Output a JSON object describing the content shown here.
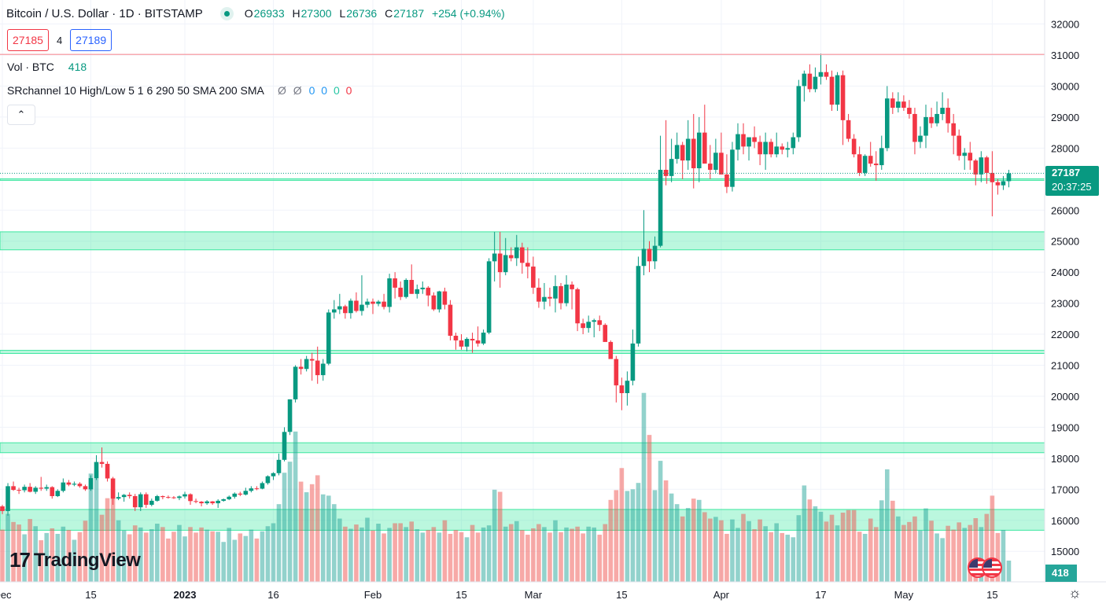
{
  "header": {
    "title": "Bitcoin / U.S. Dollar · 1D · BITSTAMP",
    "ohlc": {
      "o_label": "O",
      "o": "26933",
      "h_label": "H",
      "h": "27300",
      "l_label": "L",
      "l": "26736",
      "c_label": "C",
      "c": "27187",
      "change": "+254 (+0.94%)"
    }
  },
  "quote": {
    "sell": "27185",
    "spread": "4",
    "buy": "27189"
  },
  "volume_indicator": {
    "label": "Vol · BTC",
    "value": "418"
  },
  "sr_indicator": {
    "label": "SRchannel 10 High/Low 5 1 6 290 50 SMA 200 SMA",
    "v1": "Ø",
    "v2": "Ø",
    "v3": "0",
    "v4": "0",
    "v5": "0",
    "v6": "0"
  },
  "price_tag": {
    "price": "27187",
    "countdown": "20:37:25"
  },
  "volume_tag": "418",
  "logo_text": "TradingView",
  "colors": {
    "up": "#26a69a",
    "down": "#ef5350",
    "zone": "#3ce7a0"
  },
  "chart_data": {
    "type": "candlestick",
    "y_ticks": [
      15000,
      16000,
      17000,
      18000,
      19000,
      20000,
      21000,
      22000,
      23000,
      24000,
      25000,
      26000,
      27000,
      28000,
      29000,
      30000,
      31000,
      32000
    ],
    "x_ticks": [
      "Dec",
      "15",
      "2023",
      "16",
      "Feb",
      "15",
      "Mar",
      "15",
      "Apr",
      "17",
      "May",
      "15"
    ],
    "ylim": [
      14900,
      32000
    ],
    "sr_zones": [
      [
        15680,
        16350
      ],
      [
        18180,
        18500
      ],
      [
        21380,
        21480
      ],
      [
        24720,
        25300
      ],
      [
        26980,
        27010
      ]
    ],
    "resistance_line": 31020,
    "last_price": 27187,
    "ohlc": [
      [
        16450,
        16500,
        16200,
        16300,
        12.3
      ],
      [
        16300,
        17200,
        16150,
        17100,
        16.0
      ],
      [
        17100,
        17250,
        16950,
        16980,
        14.1
      ],
      [
        16980,
        17050,
        16850,
        16970,
        13.5
      ],
      [
        16970,
        17150,
        16900,
        17080,
        11.2
      ],
      [
        17080,
        17200,
        16900,
        16920,
        14.8
      ],
      [
        16920,
        17100,
        16850,
        17050,
        13.1
      ],
      [
        17050,
        17400,
        16950,
        17020,
        9.8
      ],
      [
        17020,
        17150,
        16950,
        17070,
        11.5
      ],
      [
        17070,
        17100,
        16700,
        16780,
        12.6
      ],
      [
        16780,
        17000,
        16750,
        16950,
        11.3
      ],
      [
        16950,
        17350,
        16900,
        17220,
        13.0
      ],
      [
        17220,
        17300,
        17100,
        17150,
        12.2
      ],
      [
        17150,
        17250,
        17100,
        17180,
        9.9
      ],
      [
        17180,
        17230,
        17050,
        17100,
        11.7
      ],
      [
        17100,
        17150,
        16950,
        17000,
        14.4
      ],
      [
        17000,
        17450,
        16950,
        17360,
        25.5
      ],
      [
        17360,
        18100,
        17300,
        17880,
        26.2
      ],
      [
        17880,
        18350,
        17700,
        17820,
        15.8
      ],
      [
        17820,
        17900,
        17250,
        17350,
        19.7
      ],
      [
        17350,
        17400,
        16500,
        16700,
        21.9
      ],
      [
        16700,
        16900,
        16650,
        16750,
        14.5
      ],
      [
        16750,
        16850,
        16600,
        16820,
        12.1
      ],
      [
        16820,
        16900,
        16700,
        16780,
        11.2
      ],
      [
        16780,
        16850,
        16300,
        16420,
        13.3
      ],
      [
        16420,
        16900,
        16300,
        16840,
        12.8
      ],
      [
        16840,
        16900,
        16400,
        16500,
        11.6
      ],
      [
        16500,
        16700,
        16450,
        16630,
        12.4
      ],
      [
        16630,
        16820,
        16600,
        16780,
        13.7
      ],
      [
        16780,
        16800,
        16680,
        16750,
        12.9
      ],
      [
        16750,
        16800,
        16700,
        16740,
        10.2
      ],
      [
        16740,
        16780,
        16690,
        16720,
        11.8
      ],
      [
        16720,
        16800,
        16650,
        16770,
        13.4
      ],
      [
        16770,
        16920,
        16700,
        16840,
        10.7
      ],
      [
        16840,
        16870,
        16500,
        16620,
        12.9
      ],
      [
        16620,
        16700,
        16550,
        16600,
        11.6
      ],
      [
        16600,
        16620,
        16450,
        16550,
        12.8
      ],
      [
        16550,
        16650,
        16500,
        16610,
        12.3
      ],
      [
        16610,
        16620,
        16500,
        16550,
        11.9
      ],
      [
        16550,
        16680,
        16400,
        16630,
        11.8
      ],
      [
        16630,
        16700,
        16600,
        16680,
        9.4
      ],
      [
        16680,
        16800,
        16650,
        16760,
        12.7
      ],
      [
        16760,
        16900,
        16700,
        16860,
        9.9
      ],
      [
        16860,
        16920,
        16780,
        16830,
        11.4
      ],
      [
        16830,
        17050,
        16800,
        16950,
        10.8
      ],
      [
        16950,
        17100,
        16900,
        17030,
        12.3
      ],
      [
        17030,
        17100,
        16970,
        17020,
        10.2
      ],
      [
        17020,
        17250,
        17000,
        17200,
        11.9
      ],
      [
        17200,
        17450,
        17150,
        17420,
        13.1
      ],
      [
        17420,
        17550,
        17300,
        17520,
        13.8
      ],
      [
        17520,
        18150,
        17450,
        17950,
        18.3
      ],
      [
        17950,
        19000,
        17900,
        18850,
        25.7
      ],
      [
        18850,
        19900,
        18750,
        19900,
        28.3
      ],
      [
        19900,
        21000,
        19800,
        20950,
        35.4
      ],
      [
        20950,
        21200,
        20700,
        20880,
        23.6
      ],
      [
        20880,
        21300,
        20800,
        21200,
        21.1
      ],
      [
        21200,
        21400,
        20500,
        21150,
        23.0
      ],
      [
        21150,
        21600,
        20400,
        20680,
        25.1
      ],
      [
        20680,
        21200,
        20500,
        21050,
        20.6
      ],
      [
        21050,
        22800,
        21000,
        22700,
        20.3
      ],
      [
        22700,
        23100,
        22500,
        22800,
        18.3
      ],
      [
        22800,
        23300,
        22650,
        22900,
        14.9
      ],
      [
        22900,
        22950,
        22500,
        22680,
        13.0
      ],
      [
        22680,
        23150,
        22500,
        23080,
        12.5
      ],
      [
        23080,
        23350,
        22700,
        22750,
        13.5
      ],
      [
        22750,
        23900,
        22600,
        22950,
        12.8
      ],
      [
        22950,
        23150,
        22850,
        23050,
        15.1
      ],
      [
        23050,
        23150,
        22650,
        22980,
        12.1
      ],
      [
        22980,
        23100,
        22900,
        23050,
        13.7
      ],
      [
        23050,
        23300,
        22800,
        22880,
        11.4
      ],
      [
        22880,
        23950,
        22700,
        23800,
        12.7
      ],
      [
        23800,
        24000,
        23150,
        23500,
        13.8
      ],
      [
        23500,
        23700,
        23100,
        23200,
        13.8
      ],
      [
        23200,
        23800,
        23150,
        23750,
        12.9
      ],
      [
        23750,
        24250,
        23300,
        23300,
        14.2
      ],
      [
        23300,
        23600,
        23150,
        23450,
        12.4
      ],
      [
        23450,
        23700,
        23300,
        23500,
        11.6
      ],
      [
        23500,
        23550,
        22900,
        23250,
        12.2
      ],
      [
        23250,
        23350,
        22750,
        22800,
        12.9
      ],
      [
        22800,
        23400,
        22700,
        23380,
        11.6
      ],
      [
        23380,
        23500,
        22800,
        22950,
        14.5
      ],
      [
        22950,
        23100,
        21800,
        21950,
        11.3
      ],
      [
        21950,
        22050,
        21500,
        21800,
        12.2
      ],
      [
        21800,
        22000,
        21500,
        21600,
        11.7
      ],
      [
        21600,
        21900,
        21450,
        21850,
        10.5
      ],
      [
        21850,
        22050,
        21400,
        21800,
        13.4
      ],
      [
        21800,
        22250,
        21600,
        21700,
        11.6
      ],
      [
        21700,
        22150,
        21650,
        22050,
        12.8
      ],
      [
        22050,
        24450,
        22000,
        24350,
        13.3
      ],
      [
        24350,
        25300,
        23700,
        24600,
        21.7
      ],
      [
        24600,
        25300,
        23500,
        24000,
        21.2
      ],
      [
        24000,
        25100,
        23900,
        24550,
        13.0
      ],
      [
        24550,
        24800,
        24350,
        24450,
        13.6
      ],
      [
        24450,
        25200,
        24200,
        24800,
        14.3
      ],
      [
        24800,
        24950,
        23950,
        24300,
        12.2
      ],
      [
        24300,
        24800,
        23800,
        24180,
        11.1
      ],
      [
        24180,
        24500,
        23300,
        23500,
        12.6
      ],
      [
        23500,
        23800,
        22850,
        23050,
        13.6
      ],
      [
        23050,
        23650,
        22800,
        23200,
        12.9
      ],
      [
        23200,
        23500,
        22900,
        23150,
        11.6
      ],
      [
        23150,
        23900,
        22700,
        23550,
        14.5
      ],
      [
        23550,
        23650,
        22800,
        23000,
        11.7
      ],
      [
        23000,
        23900,
        22900,
        23600,
        12.8
      ],
      [
        23600,
        23700,
        22800,
        23450,
        12.5
      ],
      [
        23450,
        23500,
        22100,
        22350,
        13.0
      ],
      [
        22350,
        22500,
        22000,
        22200,
        11.4
      ],
      [
        22200,
        22600,
        22050,
        22400,
        13.0
      ],
      [
        22400,
        22500,
        21900,
        22450,
        12.8
      ],
      [
        22450,
        22600,
        22100,
        22300,
        11.1
      ],
      [
        22300,
        22350,
        21900,
        21750,
        13.6
      ],
      [
        21750,
        21800,
        21300,
        21200,
        19.3
      ],
      [
        21200,
        21300,
        19800,
        20350,
        21.6
      ],
      [
        20350,
        20600,
        19550,
        20100,
        26.8
      ],
      [
        20100,
        20800,
        19700,
        20500,
        21.4
      ],
      [
        20500,
        22150,
        20350,
        21700,
        21.8
      ],
      [
        21700,
        24500,
        21600,
        24200,
        23.3
      ],
      [
        24200,
        26000,
        23900,
        24750,
        44.5
      ],
      [
        24750,
        25000,
        24000,
        24350,
        34.6
      ],
      [
        24350,
        25150,
        24100,
        24850,
        21.6
      ],
      [
        24850,
        28400,
        24800,
        27300,
        28.5
      ],
      [
        27300,
        28900,
        26800,
        27100,
        23.9
      ],
      [
        27100,
        28300,
        26900,
        27650,
        20.8
      ],
      [
        27650,
        28500,
        27500,
        28100,
        18.3
      ],
      [
        28100,
        28200,
        27000,
        27600,
        15.4
      ],
      [
        27600,
        28900,
        27300,
        28300,
        17.4
      ],
      [
        28300,
        29100,
        26700,
        27350,
        19.6
      ],
      [
        27350,
        29000,
        26900,
        28500,
        19.3
      ],
      [
        28500,
        29400,
        27500,
        27500,
        16.4
      ],
      [
        27500,
        28100,
        27000,
        27300,
        14.9
      ],
      [
        27300,
        28300,
        27200,
        27850,
        15.3
      ],
      [
        27850,
        28500,
        27300,
        27150,
        14.5
      ],
      [
        27150,
        27800,
        26550,
        26750,
        11.3
      ],
      [
        26750,
        28200,
        26600,
        27950,
        14.7
      ],
      [
        27950,
        28800,
        27600,
        28450,
        12.7
      ],
      [
        28450,
        28800,
        27800,
        28050,
        16.0
      ],
      [
        28050,
        28200,
        27600,
        28350,
        14.3
      ],
      [
        28350,
        28700,
        28000,
        28200,
        12.4
      ],
      [
        28200,
        28400,
        27450,
        27800,
        14.7
      ],
      [
        27800,
        28500,
        27300,
        28200,
        13.1
      ],
      [
        28200,
        28300,
        27700,
        27800,
        11.7
      ],
      [
        27800,
        28500,
        27700,
        28050,
        13.8
      ],
      [
        28050,
        28150,
        27800,
        27950,
        11.5
      ],
      [
        27950,
        28200,
        27700,
        28000,
        11.1
      ],
      [
        28000,
        28500,
        27800,
        28350,
        10.5
      ],
      [
        28350,
        30200,
        28200,
        30000,
        15.7
      ],
      [
        30000,
        30500,
        29500,
        30400,
        22.7
      ],
      [
        30400,
        30700,
        29800,
        29900,
        19.4
      ],
      [
        29900,
        30600,
        29800,
        30300,
        17.8
      ],
      [
        30300,
        31050,
        30050,
        30450,
        16.5
      ],
      [
        30450,
        30700,
        30200,
        30300,
        14.2
      ],
      [
        30300,
        30500,
        29200,
        29400,
        15.8
      ],
      [
        29400,
        30450,
        29200,
        30350,
        13.3
      ],
      [
        30350,
        30500,
        28100,
        28900,
        16.3
      ],
      [
        28900,
        29100,
        28200,
        28300,
        16.9
      ],
      [
        28300,
        28450,
        27700,
        27800,
        16.9
      ],
      [
        27800,
        28050,
        27100,
        27200,
        11.8
      ],
      [
        27200,
        27800,
        27100,
        27750,
        11.3
      ],
      [
        27750,
        28200,
        27400,
        27500,
        14.9
      ],
      [
        27500,
        27900,
        26950,
        27450,
        12.9
      ],
      [
        27450,
        28400,
        27300,
        28000,
        19.2
      ],
      [
        28000,
        30000,
        27900,
        29600,
        26.5
      ],
      [
        29600,
        29800,
        29100,
        29300,
        19.1
      ],
      [
        29300,
        29800,
        29150,
        29500,
        15.4
      ],
      [
        29500,
        29700,
        29200,
        29300,
        13.4
      ],
      [
        29300,
        29550,
        28950,
        29100,
        14.1
      ],
      [
        29100,
        29300,
        27800,
        28200,
        15.4
      ],
      [
        28200,
        28700,
        28000,
        28400,
        12.1
      ],
      [
        28400,
        29400,
        28000,
        29000,
        17.3
      ],
      [
        29000,
        29300,
        28650,
        28800,
        14.4
      ],
      [
        28800,
        29500,
        28700,
        29100,
        11.4
      ],
      [
        29100,
        29800,
        28900,
        29300,
        10.3
      ],
      [
        29300,
        29600,
        28500,
        28800,
        13.2
      ],
      [
        28800,
        29100,
        27800,
        28400,
        12.3
      ],
      [
        28400,
        28600,
        27600,
        27750,
        14.0
      ],
      [
        27750,
        28000,
        27300,
        27850,
        12.7
      ],
      [
        27850,
        28200,
        27300,
        27600,
        13.4
      ],
      [
        27600,
        27650,
        26800,
        27150,
        15.0
      ],
      [
        27150,
        27900,
        26900,
        27700,
        12.9
      ],
      [
        27700,
        27750,
        26850,
        27200,
        16.0
      ],
      [
        27200,
        27900,
        25800,
        26900,
        20.3
      ],
      [
        26900,
        27000,
        26500,
        26800,
        11.5
      ],
      [
        26800,
        27100,
        26650,
        26933,
        12.2
      ],
      [
        26933,
        27300,
        26736,
        27187,
        5.0
      ]
    ]
  }
}
